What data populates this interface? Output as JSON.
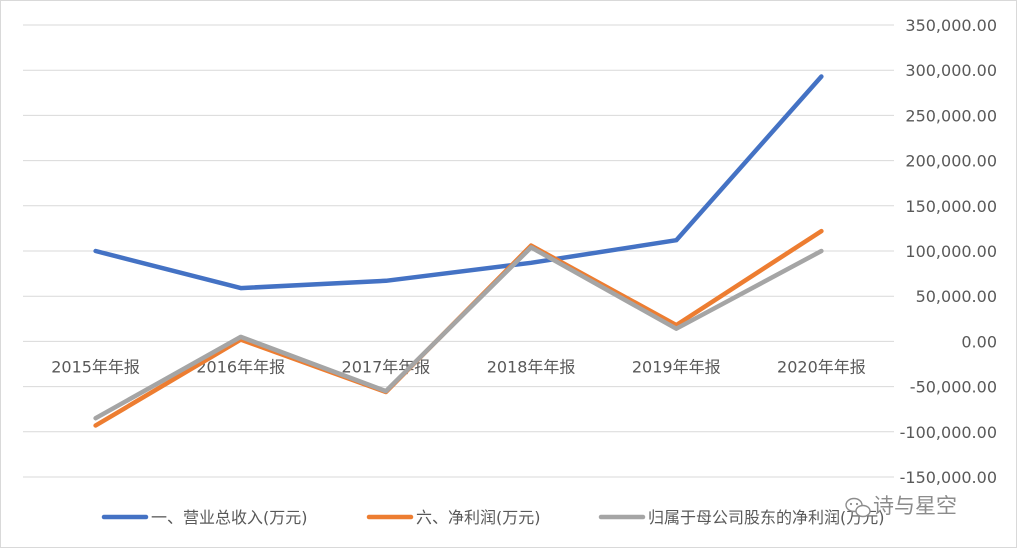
{
  "chart_data": {
    "type": "line",
    "categories": [
      "2015年年报",
      "2016年年报",
      "2017年年报",
      "2018年年报",
      "2019年年报",
      "2020年年报"
    ],
    "series": [
      {
        "name": "一、营业总收入(万元)",
        "color": "#4472c4",
        "values": [
          100000,
          59000,
          67000,
          87000,
          112000,
          293000
        ]
      },
      {
        "name": "六、净利润(万元)",
        "color": "#ed7d31",
        "values": [
          -93000,
          2000,
          -56000,
          106000,
          18000,
          122000
        ]
      },
      {
        "name": "归属于母公司股东的净利润(万元)",
        "color": "#a5a5a5",
        "values": [
          -85000,
          5000,
          -55000,
          104000,
          14000,
          100000
        ]
      }
    ],
    "ylim": [
      -150000,
      350000
    ],
    "y_ticks": [
      "350,000.00",
      "300,000.00",
      "250,000.00",
      "200,000.00",
      "150,000.00",
      "100,000.00",
      "50,000.00",
      "0.00",
      "-50,000.00",
      "-100,000.00",
      "-150,000.00"
    ],
    "y_tick_values": [
      350000,
      300000,
      250000,
      200000,
      150000,
      100000,
      50000,
      0,
      -50000,
      -100000,
      -150000
    ],
    "grid": true,
    "legend_position": "bottom",
    "y_axis_position": "right"
  },
  "watermark": {
    "text": "诗与星空",
    "icon": "wechat-icon"
  }
}
